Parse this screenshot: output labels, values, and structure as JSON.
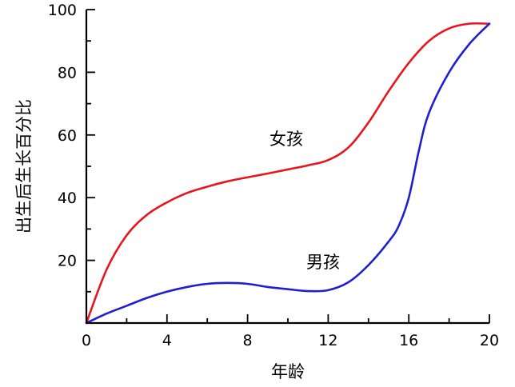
{
  "chart_data": {
    "type": "line",
    "title": "",
    "xlabel": "年龄",
    "ylabel": "出生后生长百分比",
    "xlim": [
      0,
      20
    ],
    "ylim": [
      0,
      100
    ],
    "x_ticks": [
      0,
      4,
      8,
      12,
      16,
      20
    ],
    "x_minor_ticks": [
      2,
      6,
      10,
      14,
      18
    ],
    "y_ticks": [
      20,
      40,
      60,
      80,
      100
    ],
    "y_minor_ticks": [
      10,
      30,
      50,
      70,
      90
    ],
    "grid": false,
    "series": [
      {
        "name": "女孩",
        "color": "#e8141e",
        "x": [
          0,
          1,
          2,
          3,
          4,
          5,
          6,
          7,
          8,
          9,
          10,
          11,
          12,
          13,
          14,
          15,
          16,
          17,
          18,
          19,
          20
        ],
        "y": [
          0,
          17,
          28,
          34.5,
          38.5,
          41.5,
          43.5,
          45.2,
          46.5,
          47.7,
          49,
          50.3,
          52,
          56,
          64,
          74,
          83,
          90,
          94,
          95.5,
          95.5
        ]
      },
      {
        "name": "男孩",
        "color": "#1f1fd0",
        "x": [
          0,
          1,
          2,
          3,
          4,
          5,
          6,
          7,
          8,
          9,
          10,
          11,
          12,
          13,
          14,
          15,
          15.5,
          16,
          16.5,
          17,
          18,
          19,
          20
        ],
        "y": [
          0,
          3,
          5.5,
          8,
          10,
          11.5,
          12.5,
          12.8,
          12.5,
          11.5,
          10.8,
          10.2,
          10.5,
          13,
          18.5,
          26,
          31,
          40,
          55,
          67,
          80,
          89,
          95.5
        ]
      }
    ]
  }
}
